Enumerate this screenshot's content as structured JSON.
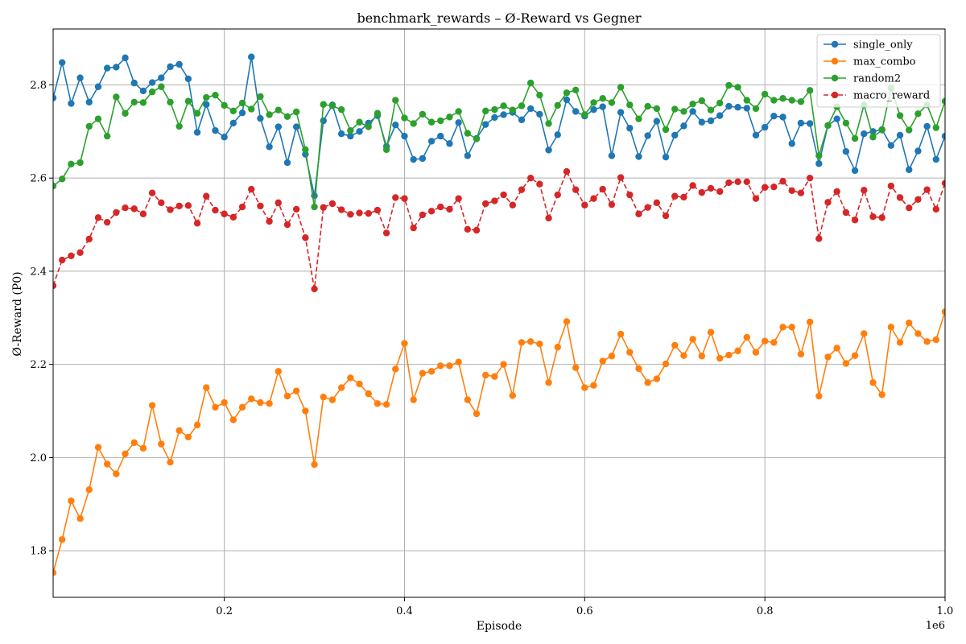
{
  "chart_data": {
    "type": "line",
    "title": "benchmark_rewards – Ø-Reward vs Gegner",
    "xlabel": "Episode",
    "ylabel": "Ø-Reward (P0)",
    "x_offset_label": "1e6",
    "xlim": [
      0.01,
      1.0
    ],
    "ylim": [
      1.7,
      2.92
    ],
    "xticks": [
      0.2,
      0.4,
      0.6,
      0.8,
      1.0
    ],
    "xtick_labels": [
      "0.2",
      "0.4",
      "0.6",
      "0.8",
      "1.0"
    ],
    "yticks": [
      1.8,
      2.0,
      2.2,
      2.4,
      2.6,
      2.8
    ],
    "ytick_labels": [
      "1.8",
      "2.0",
      "2.2",
      "2.4",
      "2.6",
      "2.8"
    ],
    "grid": true,
    "legend_position": "top-right",
    "x": [
      0.01,
      0.02,
      0.03,
      0.04,
      0.05,
      0.06,
      0.07,
      0.08,
      0.09,
      0.1,
      0.11,
      0.12,
      0.13,
      0.14,
      0.15,
      0.16,
      0.17,
      0.18,
      0.19,
      0.2,
      0.21,
      0.22,
      0.23,
      0.24,
      0.25,
      0.26,
      0.27,
      0.28,
      0.29,
      0.3,
      0.31,
      0.32,
      0.33,
      0.34,
      0.35,
      0.36,
      0.37,
      0.38,
      0.39,
      0.4,
      0.41,
      0.42,
      0.43,
      0.44,
      0.45,
      0.46,
      0.47,
      0.48,
      0.49,
      0.5,
      0.51,
      0.52,
      0.53,
      0.54,
      0.55,
      0.56,
      0.57,
      0.58,
      0.59,
      0.6,
      0.61,
      0.62,
      0.63,
      0.64,
      0.65,
      0.66,
      0.67,
      0.68,
      0.69,
      0.7,
      0.71,
      0.72,
      0.73,
      0.74,
      0.75,
      0.76,
      0.77,
      0.78,
      0.79,
      0.8,
      0.81,
      0.82,
      0.83,
      0.84,
      0.85,
      0.86,
      0.87,
      0.88,
      0.89,
      0.9,
      0.91,
      0.92,
      0.93,
      0.94,
      0.95,
      0.96,
      0.97,
      0.98,
      0.99,
      1.0
    ],
    "series": [
      {
        "name": "single_only",
        "color": "#1f77b4",
        "dashed": false,
        "values": [
          2.772,
          2.848,
          2.76,
          2.815,
          2.763,
          2.796,
          2.836,
          2.838,
          2.858,
          2.804,
          2.787,
          2.805,
          2.815,
          2.839,
          2.844,
          2.813,
          2.698,
          2.758,
          2.702,
          2.688,
          2.718,
          2.74,
          2.86,
          2.728,
          2.667,
          2.71,
          2.633,
          2.71,
          2.651,
          2.562,
          2.723,
          2.757,
          2.695,
          2.69,
          2.7,
          2.718,
          2.734,
          2.668,
          2.714,
          2.69,
          2.64,
          2.642,
          2.679,
          2.69,
          2.674,
          2.719,
          2.648,
          2.685,
          2.715,
          2.73,
          2.736,
          2.741,
          2.725,
          2.749,
          2.737,
          2.66,
          2.693,
          2.768,
          2.743,
          2.733,
          2.747,
          2.753,
          2.648,
          2.741,
          2.707,
          2.646,
          2.691,
          2.722,
          2.645,
          2.692,
          2.712,
          2.743,
          2.72,
          2.723,
          2.734,
          2.754,
          2.752,
          2.75,
          2.692,
          2.709,
          2.733,
          2.731,
          2.674,
          2.718,
          2.717,
          2.631,
          2.713,
          2.727,
          2.657,
          2.616,
          2.695,
          2.7,
          2.704,
          2.67,
          2.692,
          2.618,
          2.658,
          2.711,
          2.64,
          2.69
        ]
      },
      {
        "name": "max_combo",
        "color": "#ff7f0e",
        "dashed": false,
        "values": [
          1.753,
          1.824,
          1.907,
          1.869,
          1.931,
          2.022,
          1.986,
          1.965,
          2.008,
          2.032,
          2.02,
          2.112,
          2.029,
          1.99,
          2.058,
          2.044,
          2.07,
          2.15,
          2.108,
          2.118,
          2.081,
          2.108,
          2.126,
          2.118,
          2.116,
          2.185,
          2.132,
          2.143,
          2.1,
          1.985,
          2.13,
          2.124,
          2.15,
          2.171,
          2.158,
          2.137,
          2.116,
          2.114,
          2.19,
          2.245,
          2.124,
          2.181,
          2.185,
          2.197,
          2.197,
          2.205,
          2.124,
          2.094,
          2.177,
          2.174,
          2.2,
          2.133,
          2.247,
          2.249,
          2.244,
          2.161,
          2.237,
          2.292,
          2.193,
          2.15,
          2.155,
          2.207,
          2.218,
          2.265,
          2.226,
          2.191,
          2.161,
          2.169,
          2.201,
          2.241,
          2.219,
          2.254,
          2.218,
          2.269,
          2.213,
          2.22,
          2.229,
          2.258,
          2.226,
          2.25,
          2.247,
          2.28,
          2.28,
          2.222,
          2.291,
          2.132,
          2.216,
          2.235,
          2.202,
          2.219,
          2.266,
          2.161,
          2.135,
          2.28,
          2.247,
          2.289,
          2.266,
          2.249,
          2.253,
          2.313
        ]
      },
      {
        "name": "random2",
        "color": "#2ca02c",
        "dashed": false,
        "values": [
          2.583,
          2.598,
          2.63,
          2.633,
          2.711,
          2.727,
          2.69,
          2.774,
          2.739,
          2.763,
          2.762,
          2.785,
          2.796,
          2.763,
          2.711,
          2.765,
          2.739,
          2.773,
          2.778,
          2.756,
          2.744,
          2.761,
          2.748,
          2.775,
          2.736,
          2.746,
          2.732,
          2.742,
          2.661,
          2.538,
          2.758,
          2.755,
          2.747,
          2.702,
          2.72,
          2.71,
          2.739,
          2.661,
          2.767,
          2.729,
          2.717,
          2.737,
          2.72,
          2.723,
          2.731,
          2.743,
          2.696,
          2.684,
          2.744,
          2.747,
          2.755,
          2.746,
          2.755,
          2.804,
          2.778,
          2.717,
          2.756,
          2.783,
          2.789,
          2.736,
          2.762,
          2.771,
          2.762,
          2.795,
          2.757,
          2.727,
          2.754,
          2.749,
          2.704,
          2.748,
          2.743,
          2.759,
          2.766,
          2.746,
          2.761,
          2.799,
          2.795,
          2.767,
          2.749,
          2.78,
          2.767,
          2.771,
          2.767,
          2.764,
          2.788,
          2.648,
          2.713,
          2.753,
          2.718,
          2.685,
          2.757,
          2.688,
          2.703,
          2.793,
          2.734,
          2.703,
          2.738,
          2.757,
          2.708,
          2.765
        ]
      },
      {
        "name": "macro_reward",
        "color": "#d62728",
        "dashed": true,
        "values": [
          2.369,
          2.424,
          2.433,
          2.44,
          2.469,
          2.515,
          2.505,
          2.526,
          2.536,
          2.534,
          2.523,
          2.568,
          2.547,
          2.532,
          2.54,
          2.541,
          2.503,
          2.561,
          2.531,
          2.523,
          2.516,
          2.538,
          2.576,
          2.54,
          2.507,
          2.547,
          2.5,
          2.533,
          2.472,
          2.362,
          2.537,
          2.545,
          2.532,
          2.522,
          2.525,
          2.524,
          2.531,
          2.482,
          2.558,
          2.556,
          2.493,
          2.521,
          2.529,
          2.538,
          2.533,
          2.556,
          2.49,
          2.488,
          2.545,
          2.551,
          2.564,
          2.542,
          2.575,
          2.6,
          2.587,
          2.514,
          2.564,
          2.614,
          2.575,
          2.542,
          2.556,
          2.576,
          2.543,
          2.601,
          2.564,
          2.523,
          2.537,
          2.547,
          2.519,
          2.561,
          2.559,
          2.584,
          2.569,
          2.578,
          2.571,
          2.59,
          2.592,
          2.592,
          2.556,
          2.58,
          2.581,
          2.593,
          2.573,
          2.568,
          2.6,
          2.47,
          2.548,
          2.571,
          2.526,
          2.51,
          2.574,
          2.517,
          2.515,
          2.583,
          2.558,
          2.536,
          2.554,
          2.575,
          2.533,
          2.589
        ]
      }
    ]
  }
}
